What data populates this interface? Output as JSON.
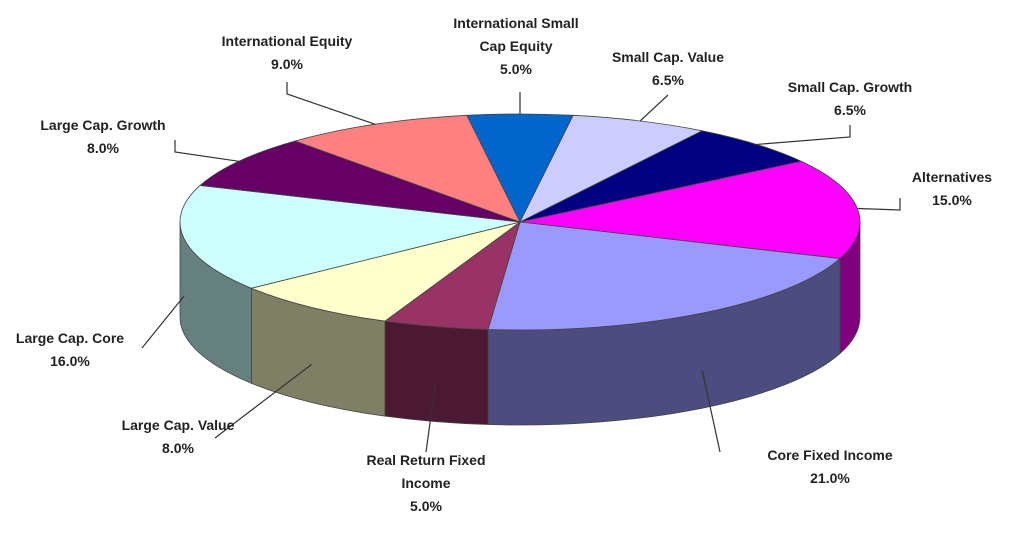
{
  "chart_data": {
    "type": "pie3d",
    "categories": [
      "International Small Cap Equity",
      "Small Cap. Value",
      "Small Cap. Growth",
      "Alternatives",
      "Core Fixed Income",
      "Real Return Fixed Income",
      "Large Cap. Value",
      "Large Cap. Core",
      "Large Cap. Growth",
      "International Equity"
    ],
    "values": [
      5.0,
      6.5,
      6.5,
      15.0,
      21.0,
      5.0,
      8.0,
      16.0,
      8.0,
      9.0
    ],
    "value_labels": [
      "5.0%",
      "6.5%",
      "6.5%",
      "15.0%",
      "21.0%",
      "5.0%",
      "8.0%",
      "16.0%",
      "8.0%",
      "9.0%"
    ],
    "colors": [
      "#0066cc",
      "#ccccff",
      "#000080",
      "#ff00ff",
      "#9999ff",
      "#993366",
      "#ffffcc",
      "#ccffff",
      "#660066",
      "#ff8080"
    ]
  }
}
